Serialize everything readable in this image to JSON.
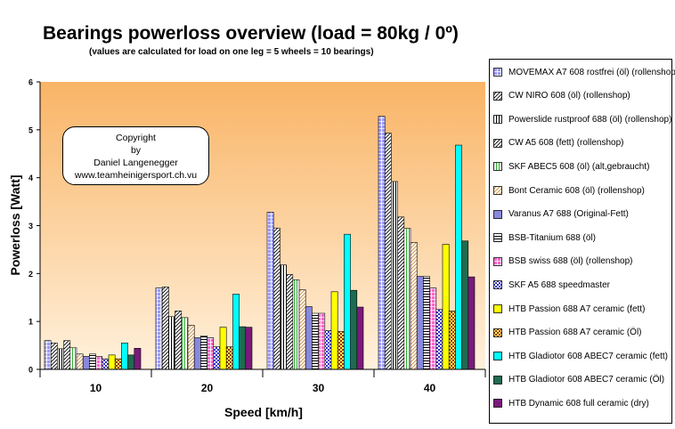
{
  "chart_data": {
    "type": "bar",
    "title": "Bearings powerloss overview (load = 80kg / 0º)",
    "subtitle": "(values are calculated for load on one leg = 5 wheels = 10 bearings)",
    "xlabel": "Speed [km/h]",
    "ylabel": "Powerloss [Watt]",
    "ylim": [
      0,
      6
    ],
    "yticks": [
      "0",
      "1",
      "2",
      "3",
      "4",
      "5",
      "6"
    ],
    "grid": false,
    "legend_position": "right",
    "categories": [
      "10",
      "20",
      "30",
      "40"
    ],
    "series": [
      {
        "name": "MOVEMAX A7 608 rostfrei (öl) (rollenshop)",
        "color": "#9999ff",
        "pattern": "grid",
        "values": [
          0.6,
          1.7,
          3.28,
          5.28
        ]
      },
      {
        "name": "CW NIRO 608 (öl) (rollenshop)",
        "color": "#000000",
        "pattern": "diag",
        "values": [
          0.55,
          1.72,
          2.95,
          4.93
        ]
      },
      {
        "name": "Powerslide rustproof 688 (öl) (rollenshop)",
        "color": "#000000",
        "pattern": "vert",
        "values": [
          0.43,
          1.1,
          2.18,
          3.92
        ]
      },
      {
        "name": "CW A5 608 (fett) (rollenshop)",
        "color": "#000000",
        "pattern": "diag",
        "values": [
          0.6,
          1.22,
          1.98,
          3.18
        ]
      },
      {
        "name": "SKF ABEC5 608 (öl) (alt,gebraucht)",
        "color": "#33aa33",
        "pattern": "vert",
        "values": [
          0.45,
          1.08,
          1.87,
          2.94
        ]
      },
      {
        "name": "Bont Ceramic 608 (öl) (rollenshop)",
        "color": "#cc8833",
        "pattern": "diag",
        "values": [
          0.32,
          0.92,
          1.66,
          2.65
        ]
      },
      {
        "name": "Varanus A7 688 (Original-Fett)",
        "color": "#8888dd",
        "pattern": "solid",
        "values": [
          0.27,
          0.66,
          1.31,
          1.94
        ]
      },
      {
        "name": "BSB-Titanium 688 (öl)",
        "color": "#000000",
        "pattern": "horiz",
        "values": [
          0.32,
          0.7,
          1.17,
          1.94
        ]
      },
      {
        "name": "BSB swiss 688 (öl) (rollenshop)",
        "color": "#ff66cc",
        "pattern": "grid",
        "values": [
          0.27,
          0.66,
          1.17,
          1.7
        ]
      },
      {
        "name": "SKF A5 688 speedmaster",
        "color": "#3333cc",
        "pattern": "check",
        "values": [
          0.22,
          0.47,
          0.81,
          1.25
        ]
      },
      {
        "name": "HTB Passion 688 A7 ceramic (fett)",
        "color": "#ffff00",
        "pattern": "solid",
        "values": [
          0.3,
          0.88,
          1.62,
          2.61
        ]
      },
      {
        "name": "HTB Passion 688 A7 ceramic (Öl)",
        "color": "#993300",
        "pattern": "dots",
        "values": [
          0.22,
          0.47,
          0.79,
          1.22
        ]
      },
      {
        "name": "HTB Gladiotor 608 ABEC7 ceramic (fett)",
        "color": "#00ffff",
        "pattern": "solid",
        "values": [
          0.55,
          1.57,
          2.82,
          4.68
        ]
      },
      {
        "name": "HTB Gladiotor 608 ABEC7 ceramic (Öl)",
        "color": "#1f6b50",
        "pattern": "solid",
        "values": [
          0.3,
          0.89,
          1.65,
          2.68
        ]
      },
      {
        "name": "HTB Dynamic 608 full ceramic (dry)",
        "color": "#7a1a7a",
        "pattern": "solid",
        "values": [
          0.44,
          0.88,
          1.3,
          1.93
        ]
      }
    ]
  },
  "copyright": {
    "line1": "Copyright",
    "line2": "by",
    "line3": "Daniel Langenegger",
    "line4": "www.teamheinigersport.ch.vu"
  }
}
